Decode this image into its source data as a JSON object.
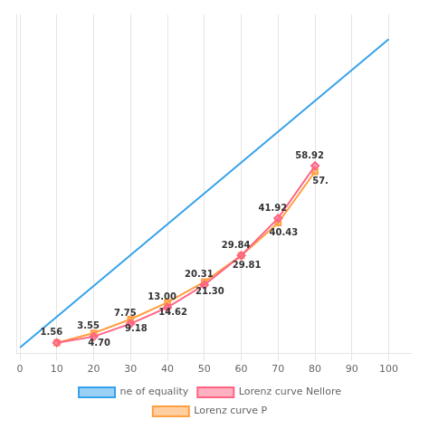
{
  "chart_data": {
    "type": "line",
    "series": [
      {
        "name": "ne of equality",
        "x": [
          0,
          100
        ],
        "values": [
          0,
          100
        ]
      },
      {
        "name": "Lorenz curve Nellore",
        "x": [
          10,
          20,
          30,
          40,
          50,
          60,
          70,
          80
        ],
        "values": [
          1.56,
          3.55,
          7.75,
          13.0,
          20.31,
          29.84,
          41.92,
          58.92
        ],
        "marker": "diamond",
        "data_labels": true,
        "value_labels": [
          "1.56",
          "3.55",
          "7.75",
          "13.00",
          "20.31",
          "29.84",
          "41.92",
          "58.92"
        ]
      },
      {
        "name": "Lorenz curve P",
        "x": [
          10,
          20,
          30,
          40,
          50,
          60,
          70,
          80
        ],
        "values": [
          1.56,
          4.7,
          9.18,
          14.62,
          21.3,
          29.81,
          40.43,
          57.0
        ],
        "marker": "square",
        "data_labels": true,
        "value_labels": [
          null,
          "4.70",
          "9.18",
          "14.62",
          "21.30",
          "29.81",
          "40.43",
          "57."
        ]
      }
    ],
    "xlim": [
      -1,
      106
    ],
    "xticks": [
      0,
      10,
      20,
      30,
      40,
      50,
      60,
      70,
      80,
      90,
      100
    ],
    "ylim": [
      -2,
      108
    ],
    "grid": true,
    "legend": "bottom",
    "tick_labels": "x"
  }
}
